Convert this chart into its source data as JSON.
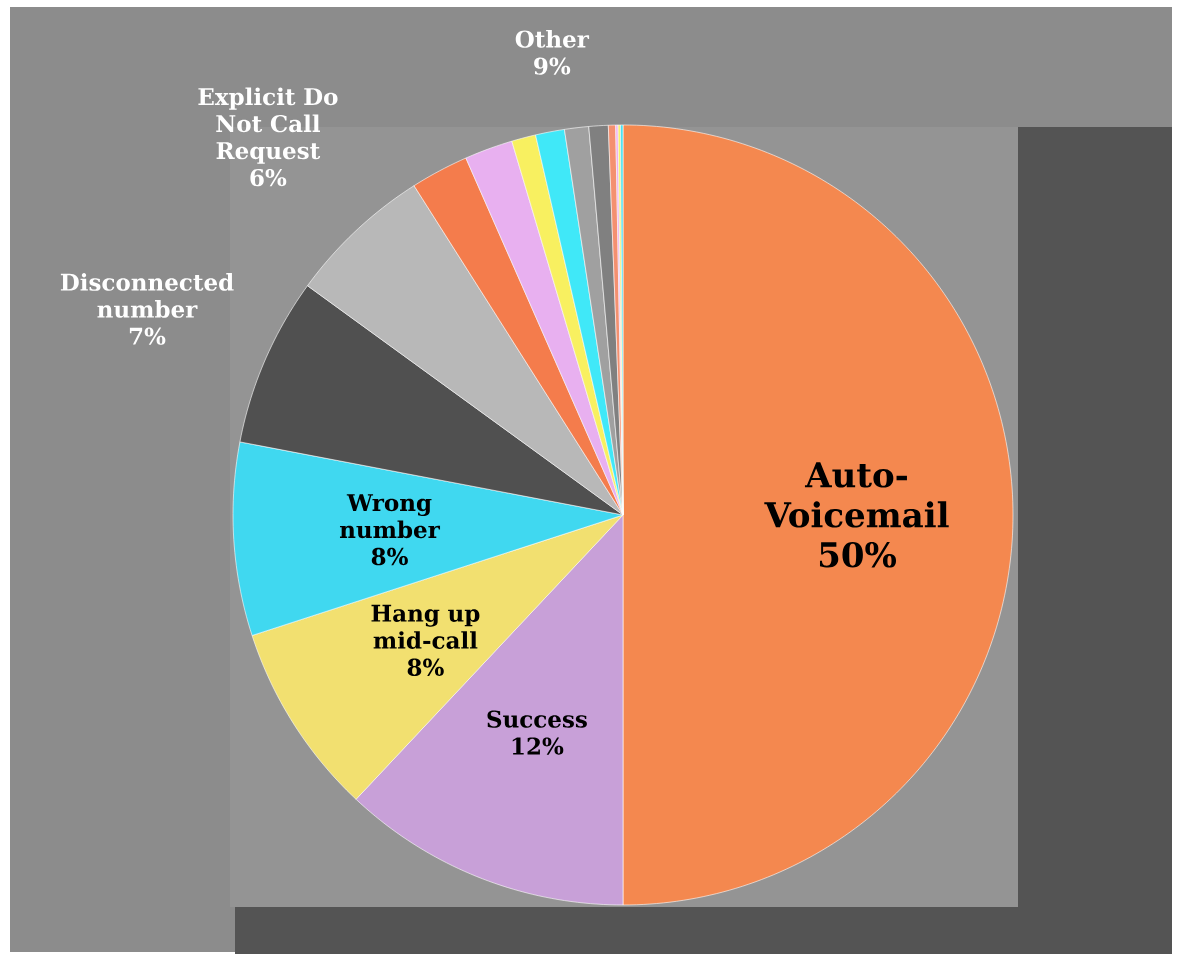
{
  "chart_data": {
    "type": "pie",
    "categories": [
      "Auto-Voicemail",
      "Success",
      "Hang up mid-call",
      "Wrong number",
      "Disconnected number",
      "Explicit Do Not Call Request",
      null,
      null,
      null,
      null,
      null,
      null,
      null,
      null,
      null,
      null
    ],
    "values": [
      50,
      12,
      8,
      8,
      7,
      6,
      2.4,
      2.0,
      1.0,
      1.2,
      1.0,
      0.8,
      0.3,
      0.1,
      0.1,
      0.1
    ],
    "colors": [
      "#f4884f",
      "#c8a0d8",
      "#f2e070",
      "#40d8f0",
      "#505050",
      "#b8b8b8",
      "#f47c4c",
      "#e8b0f0",
      "#f8f060",
      "#40e8f8",
      "#a0a0a0",
      "#808080",
      "#f49070",
      "#f0b0f0",
      "#f8f070",
      "#40e0f0"
    ],
    "value_labels": [
      "50%",
      "12%",
      "8%",
      "8%",
      "7%",
      "6%",
      null,
      null,
      null,
      null,
      null,
      null,
      null,
      null,
      null,
      null
    ],
    "annotations": [
      "Other 9%"
    ]
  }
}
